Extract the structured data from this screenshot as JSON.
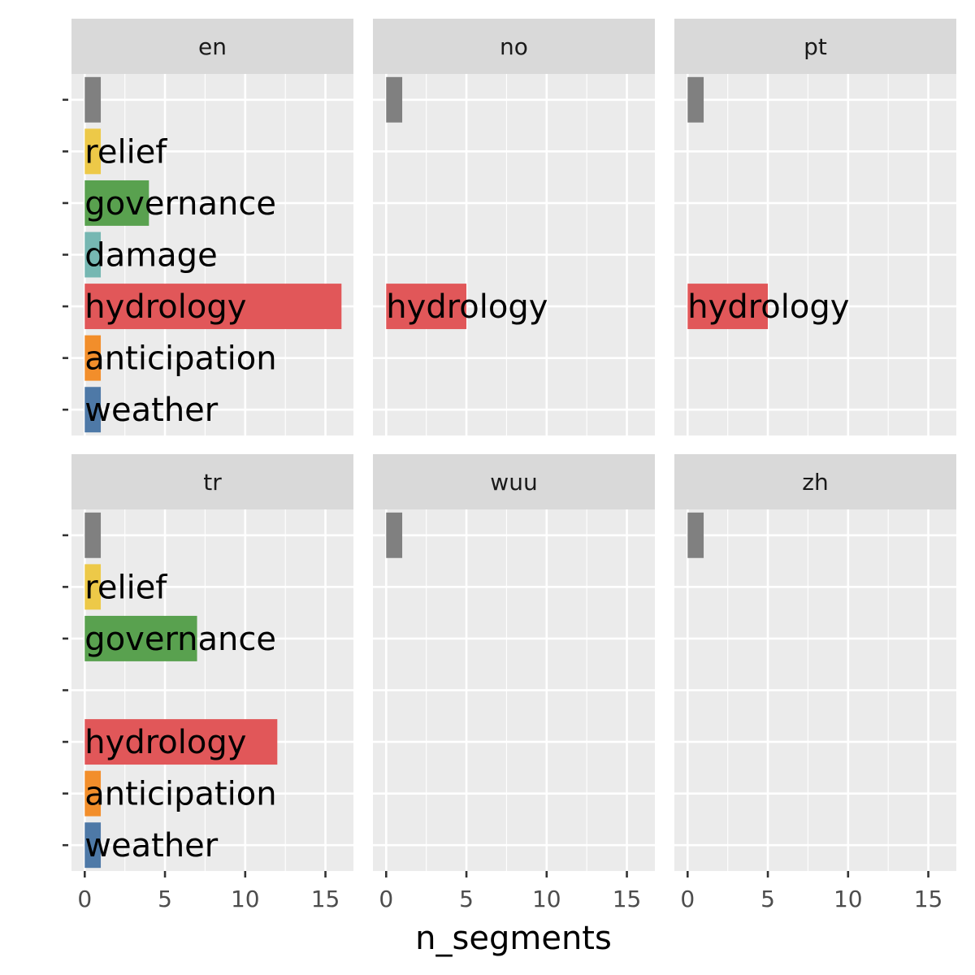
{
  "chart_data": {
    "type": "bar",
    "orientation": "horizontal",
    "facet_layout": "2 rows x 3 columns",
    "xlabel": "n_segments",
    "ylabel": "",
    "xlim": [
      0,
      16.5
    ],
    "xticks": [
      0,
      5,
      10,
      15
    ],
    "grid": true,
    "categories": [
      "",
      "relief",
      "governance",
      "damage",
      "hydrology",
      "anticipation",
      "weather"
    ],
    "colors": {
      "": "#808080",
      "relief": "#EDC948",
      "governance": "#59A14F",
      "damage": "#76B7B2",
      "hydrology": "#E15759",
      "anticipation": "#F28E2B",
      "weather": "#4E79A7"
    },
    "facets": [
      {
        "name": "en",
        "values": [
          1,
          1,
          4,
          1,
          16,
          1,
          1
        ]
      },
      {
        "name": "no",
        "values": [
          1,
          null,
          null,
          null,
          5,
          null,
          null
        ]
      },
      {
        "name": "pt",
        "values": [
          1,
          null,
          null,
          null,
          5,
          null,
          null
        ]
      },
      {
        "name": "tr",
        "values": [
          1,
          1,
          7,
          null,
          12,
          1,
          1
        ]
      },
      {
        "name": "wuu",
        "values": [
          1,
          null,
          null,
          null,
          null,
          null,
          null
        ]
      },
      {
        "name": "zh",
        "values": [
          1,
          null,
          null,
          null,
          null,
          null,
          null
        ]
      }
    ]
  }
}
